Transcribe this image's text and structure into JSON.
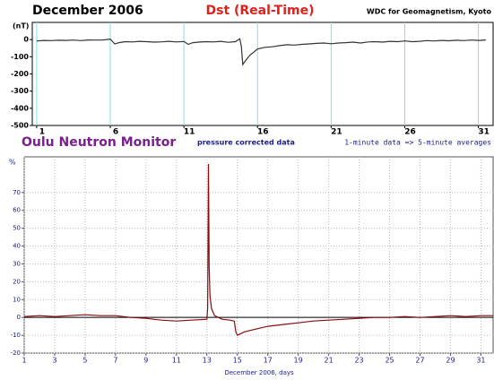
{
  "chart_data": [
    {
      "type": "line",
      "header_left": "December 2006",
      "title": "Dst (Real-Time)",
      "header_right": "WDC for Geomagnetism, Kyoto",
      "ylabel": "(nT)",
      "x": [
        1,
        1.5,
        2,
        2.5,
        3,
        3.5,
        4,
        4.5,
        5,
        5.5,
        6,
        6.3,
        6.6,
        7,
        7.5,
        8,
        8.5,
        9,
        9.5,
        10,
        10.5,
        11,
        11.3,
        11.6,
        12,
        12.5,
        13,
        13.5,
        14,
        14.5,
        14.8,
        14.9,
        15,
        15.2,
        15.5,
        16,
        16.5,
        17,
        17.5,
        18,
        18.5,
        19,
        19.5,
        20,
        20.5,
        21,
        21.5,
        22,
        22.5,
        23,
        23.5,
        24,
        24.5,
        25,
        25.5,
        26,
        26.5,
        27,
        27.5,
        28,
        28.5,
        29,
        29.5,
        30,
        30.5,
        31,
        31.5
      ],
      "series": [
        {
          "color": "#333333",
          "values": [
            -8,
            -5,
            -6,
            -4,
            -5,
            -3,
            -6,
            -2,
            -3,
            -2,
            3,
            -25,
            -18,
            -12,
            -14,
            -10,
            -12,
            -15,
            -13,
            -10,
            -14,
            -11,
            -28,
            -18,
            -15,
            -12,
            -14,
            -10,
            -16,
            -12,
            5,
            -40,
            -145,
            -120,
            -90,
            -55,
            -45,
            -42,
            -35,
            -30,
            -32,
            -28,
            -25,
            -22,
            -20,
            -24,
            -20,
            -18,
            -15,
            -20,
            -14,
            -12,
            -15,
            -10,
            -12,
            -8,
            -12,
            -10,
            -6,
            -8,
            -5,
            -7,
            -4,
            -6,
            -3,
            -5,
            -2
          ]
        }
      ],
      "xlim": [
        0.7,
        32
      ],
      "xticks": [
        1,
        6,
        11,
        16,
        21,
        26,
        31
      ],
      "ylim": [
        -500,
        100
      ],
      "yticks": [
        0,
        -100,
        -200,
        -300,
        -400,
        -500
      ],
      "grid": "x",
      "grid_color": "#7fe3e8"
    },
    {
      "type": "line",
      "title": "Oulu Neutron Monitor",
      "subtitle": "pressure corrected data",
      "note": "1-minute data => 5-minute averages",
      "ylabel": "%",
      "xlabel": "December 2006, days",
      "x": [
        1,
        2,
        3,
        4,
        5,
        6,
        7,
        8,
        9,
        10,
        11,
        12,
        13,
        13.05,
        13.1,
        13.15,
        13.2,
        13.3,
        13.5,
        14,
        14.5,
        14.8,
        14.9,
        15,
        15.5,
        16,
        17,
        18,
        19,
        20,
        21,
        22,
        23,
        24,
        25,
        26,
        27,
        28,
        29,
        30,
        31,
        31.8
      ],
      "series": [
        {
          "color": "#8b0a0a",
          "values": [
            0.5,
            1,
            0.5,
            1,
            1.5,
            1,
            1,
            0,
            -0.5,
            -1.5,
            -2,
            -1.5,
            -1,
            5,
            86,
            28,
            12,
            5,
            1,
            -1,
            -1.5,
            -2,
            -8,
            -10,
            -8,
            -7,
            -5,
            -4,
            -3,
            -2,
            -1.5,
            -1,
            -0.5,
            0,
            0,
            0.5,
            0,
            0.5,
            1,
            0.5,
            1,
            1
          ]
        }
      ],
      "xlim": [
        1,
        31.8
      ],
      "xticks": [
        1,
        3,
        5,
        7,
        9,
        11,
        13,
        15,
        17,
        19,
        21,
        23,
        25,
        27,
        29,
        31
      ],
      "ylim": [
        -20,
        90
      ],
      "yticks": [
        -20,
        -10,
        0,
        10,
        20,
        30,
        40,
        50,
        60,
        70
      ],
      "grid": "both",
      "grid_color": "#bbbbbb"
    }
  ]
}
